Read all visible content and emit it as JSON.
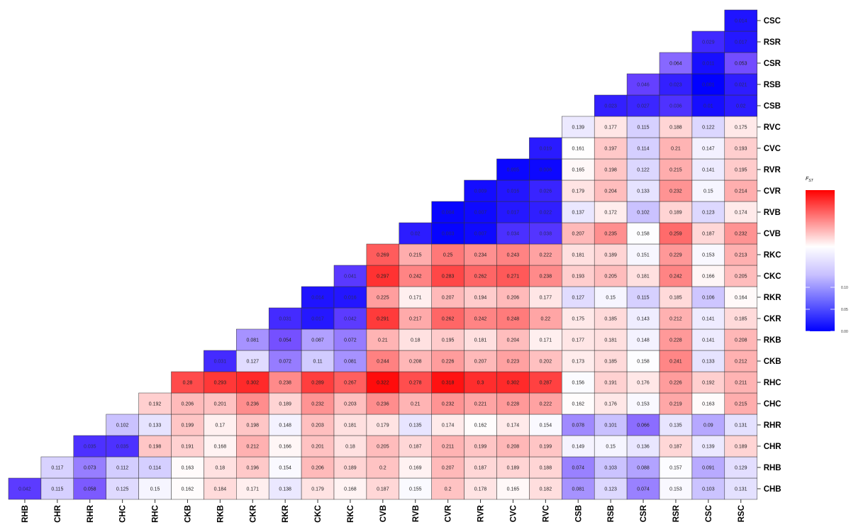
{
  "chart_data": {
    "type": "heatmap",
    "x_labels": [
      "RHB",
      "CHR",
      "RHR",
      "CHC",
      "RHC",
      "CKB",
      "RKB",
      "CKR",
      "RKR",
      "CKC",
      "RKC",
      "CVB",
      "RVB",
      "CVR",
      "RVR",
      "CVC",
      "RVC",
      "CSB",
      "RSB",
      "CSR",
      "RSR",
      "CSC",
      "RSC"
    ],
    "y_labels": [
      "CHB",
      "RHB",
      "CHR",
      "RHR",
      "CHC",
      "RHC",
      "CKB",
      "RKB",
      "CKR",
      "RKR",
      "CKC",
      "RKC",
      "CVB",
      "RVB",
      "CVR",
      "RVR",
      "CVC",
      "RVC",
      "CSB",
      "RSB",
      "CSR",
      "RSR",
      "CSC"
    ],
    "rows": [
      [
        0.042,
        0.115,
        0.058,
        0.125,
        0.15,
        0.162,
        0.184,
        0.171,
        0.138,
        0.179,
        0.168,
        0.187,
        0.155,
        0.2,
        0.178,
        0.165,
        0.182,
        0.081,
        0.123,
        0.074,
        0.153,
        0.103,
        0.131
      ],
      [
        null,
        0.117,
        0.073,
        0.112,
        0.114,
        0.163,
        0.18,
        0.196,
        0.154,
        0.206,
        0.189,
        0.2,
        0.169,
        0.207,
        0.187,
        0.189,
        0.188,
        0.074,
        0.103,
        0.088,
        0.157,
        0.091,
        0.129
      ],
      [
        null,
        null,
        0.035,
        0.035,
        0.198,
        0.191,
        0.168,
        0.212,
        0.166,
        0.201,
        0.18,
        0.205,
        0.187,
        0.211,
        0.199,
        0.208,
        0.199,
        0.149,
        0.15,
        0.136,
        0.187,
        0.139,
        0.189
      ],
      [
        null,
        null,
        null,
        0.102,
        0.133,
        0.199,
        0.17,
        0.198,
        0.148,
        0.203,
        0.181,
        0.179,
        0.135,
        0.174,
        0.162,
        0.174,
        0.154,
        0.078,
        0.101,
        0.066,
        0.135,
        0.09,
        0.131
      ],
      [
        null,
        null,
        null,
        null,
        0.192,
        0.206,
        0.201,
        0.236,
        0.189,
        0.232,
        0.203,
        0.236,
        0.21,
        0.232,
        0.221,
        0.228,
        0.222,
        0.162,
        0.176,
        0.153,
        0.219,
        0.163,
        0.215
      ],
      [
        null,
        null,
        null,
        null,
        null,
        0.28,
        0.293,
        0.302,
        0.238,
        0.289,
        0.267,
        0.322,
        0.278,
        0.318,
        0.3,
        0.302,
        0.287,
        0.156,
        0.191,
        0.176,
        0.226,
        0.192,
        0.211
      ],
      [
        null,
        null,
        null,
        null,
        null,
        null,
        0.031,
        0.127,
        0.072,
        0.11,
        0.081,
        0.244,
        0.208,
        0.226,
        0.207,
        0.223,
        0.202,
        0.173,
        0.185,
        0.158,
        0.241,
        0.133,
        0.212
      ],
      [
        null,
        null,
        null,
        null,
        null,
        null,
        null,
        0.081,
        0.054,
        0.087,
        0.072,
        0.21,
        0.18,
        0.195,
        0.181,
        0.204,
        0.171,
        0.177,
        0.181,
        0.148,
        0.228,
        0.141,
        0.208
      ],
      [
        null,
        null,
        null,
        null,
        null,
        null,
        null,
        null,
        0.031,
        0.017,
        0.042,
        0.291,
        0.217,
        0.262,
        0.242,
        0.248,
        0.22,
        0.175,
        0.185,
        0.143,
        0.212,
        0.141,
        0.185
      ],
      [
        null,
        null,
        null,
        null,
        null,
        null,
        null,
        null,
        null,
        0.014,
        0.016,
        0.225,
        0.171,
        0.207,
        0.194,
        0.206,
        0.177,
        0.127,
        0.15,
        0.115,
        0.185,
        0.106,
        0.164
      ],
      [
        null,
        null,
        null,
        null,
        null,
        null,
        null,
        null,
        null,
        null,
        0.041,
        0.297,
        0.242,
        0.283,
        0.262,
        0.271,
        0.238,
        0.193,
        0.205,
        0.181,
        0.242,
        0.166,
        0.205
      ],
      [
        null,
        null,
        null,
        null,
        null,
        null,
        null,
        null,
        null,
        null,
        null,
        0.269,
        0.215,
        0.25,
        0.234,
        0.243,
        0.222,
        0.181,
        0.189,
        0.151,
        0.229,
        0.153,
        0.213
      ],
      [
        null,
        null,
        null,
        null,
        null,
        null,
        null,
        null,
        null,
        null,
        null,
        null,
        0.02,
        0.003,
        0.007,
        0.034,
        0.038,
        0.207,
        0.235,
        0.158,
        0.259,
        0.187,
        0.232
      ],
      [
        null,
        null,
        null,
        null,
        null,
        null,
        null,
        null,
        null,
        null,
        null,
        null,
        null,
        0.004,
        0.007,
        0.017,
        0.022,
        0.137,
        0.172,
        0.102,
        0.189,
        0.123,
        0.174
      ],
      [
        null,
        null,
        null,
        null,
        null,
        null,
        null,
        null,
        null,
        null,
        null,
        null,
        null,
        null,
        0.009,
        0.016,
        0.026,
        0.179,
        0.204,
        0.133,
        0.232,
        0.15,
        0.214
      ],
      [
        null,
        null,
        null,
        null,
        null,
        null,
        null,
        null,
        null,
        null,
        null,
        null,
        null,
        null,
        null,
        0.005,
        0.006,
        0.165,
        0.198,
        0.122,
        0.215,
        0.141,
        0.195
      ],
      [
        null,
        null,
        null,
        null,
        null,
        null,
        null,
        null,
        null,
        null,
        null,
        null,
        null,
        null,
        null,
        null,
        0.019,
        0.161,
        0.197,
        0.114,
        0.21,
        0.147,
        0.193
      ],
      [
        null,
        null,
        null,
        null,
        null,
        null,
        null,
        null,
        null,
        null,
        null,
        null,
        null,
        null,
        null,
        null,
        null,
        0.139,
        0.177,
        0.115,
        0.188,
        0.122,
        0.175
      ],
      [
        null,
        null,
        null,
        null,
        null,
        null,
        null,
        null,
        null,
        null,
        null,
        null,
        null,
        null,
        null,
        null,
        null,
        null,
        0.023,
        0.027,
        0.036,
        0.01,
        0.02
      ],
      [
        null,
        null,
        null,
        null,
        null,
        null,
        null,
        null,
        null,
        null,
        null,
        null,
        null,
        null,
        null,
        null,
        null,
        null,
        null,
        0.046,
        0.023,
        0.001,
        0.021
      ],
      [
        null,
        null,
        null,
        null,
        null,
        null,
        null,
        null,
        null,
        null,
        null,
        null,
        null,
        null,
        null,
        null,
        null,
        null,
        null,
        null,
        0.064,
        0.011,
        0.053
      ],
      [
        null,
        null,
        null,
        null,
        null,
        null,
        null,
        null,
        null,
        null,
        null,
        null,
        null,
        null,
        null,
        null,
        null,
        null,
        null,
        null,
        null,
        0.029,
        0.017
      ],
      [
        null,
        null,
        null,
        null,
        null,
        null,
        null,
        null,
        null,
        null,
        null,
        null,
        null,
        null,
        null,
        null,
        null,
        null,
        null,
        null,
        null,
        null,
        0.014
      ]
    ],
    "color_scale": {
      "low_color": "#0000ff",
      "mid_color": "#ffffff",
      "high_color": "#ff0000",
      "visible_tick_labels": [
        "0.10",
        "0.05",
        "0.00"
      ],
      "tick_values": [
        0.1,
        0.05,
        0.0
      ],
      "title_main": "F",
      "title_sub": "ST"
    },
    "grid": false,
    "legend_position": "right"
  }
}
